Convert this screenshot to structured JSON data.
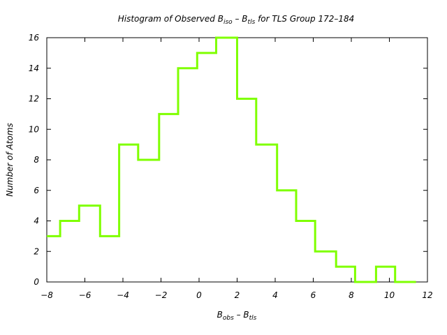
{
  "chart_data": {
    "type": "histogram-step",
    "title": {
      "prefix": "Histogram of Observed B",
      "sub1": "iso",
      "middle": " – B",
      "sub2": "tls",
      "suffix": " for TLS Group 172–184"
    },
    "xlabel": {
      "main1": "B",
      "sub1": "obs",
      "middle": " – B",
      "sub2": "tls"
    },
    "ylabel": "Number of Atoms",
    "xlim": [
      -8,
      12
    ],
    "ylim": [
      0,
      16
    ],
    "xticks": [
      -8,
      -6,
      -4,
      -2,
      0,
      2,
      4,
      6,
      8,
      10,
      12
    ],
    "yticks": [
      0,
      2,
      4,
      6,
      8,
      10,
      12,
      14,
      16
    ],
    "xtick_labels": [
      "−8",
      "−6",
      "−4",
      "−2",
      "0",
      "2",
      "4",
      "6",
      "8",
      "10",
      "12"
    ],
    "ytick_labels": [
      "0",
      "2",
      "4",
      "6",
      "8",
      "10",
      "12",
      "14",
      "16"
    ],
    "bin_edges": [
      -8.0,
      -7.3,
      -6.3,
      -5.2,
      -4.2,
      -3.2,
      -2.1,
      -1.1,
      -0.1,
      0.9,
      2.0,
      3.0,
      4.1,
      5.1,
      6.1,
      7.2,
      8.2,
      9.3,
      10.3,
      11.4
    ],
    "counts": [
      3,
      4,
      5,
      3,
      9,
      8,
      11,
      14,
      15,
      16,
      12,
      9,
      6,
      4,
      2,
      1,
      0,
      1,
      0
    ],
    "line_color": "#7fff00",
    "grid": false
  }
}
